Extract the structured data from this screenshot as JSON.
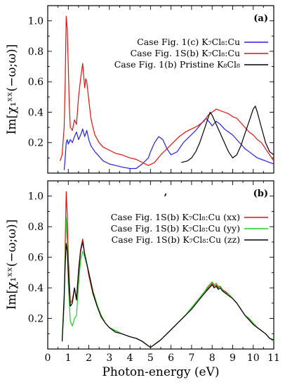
{
  "chart_data": [
    {
      "type": "line",
      "panel_label": "(a)",
      "ylabel": "Im[χ₁ˣˣ(−ω;ω)]",
      "xlim": [
        0,
        11
      ],
      "ylim": [
        0,
        1.1
      ],
      "yticks": [
        0.2,
        0.4,
        0.6,
        0.8,
        1.0
      ],
      "ytick_labels": [
        "0.2",
        "0.4",
        "0.6",
        "0.8",
        "1.0"
      ],
      "legend_position": "top-right",
      "series": [
        {
          "name": "Case Fig. 1(c) K₇Cl₈:Cu",
          "color": "#2222dd",
          "x": [
            0.8,
            0.85,
            0.9,
            0.95,
            1.0,
            1.1,
            1.2,
            1.3,
            1.4,
            1.5,
            1.6,
            1.7,
            1.8,
            1.9,
            2.0,
            2.1,
            2.2,
            2.3,
            2.5,
            2.7,
            3.0,
            3.3,
            3.6,
            4.0,
            4.3,
            4.6,
            4.9,
            5.0,
            5.2,
            5.4,
            5.6,
            5.8,
            6.0,
            6.3,
            6.6,
            6.9,
            7.2,
            7.5,
            7.7,
            7.9,
            8.0,
            8.2,
            8.4,
            8.6,
            8.8,
            9.0,
            9.2,
            9.4,
            9.6,
            9.8,
            10.0,
            10.2,
            10.4,
            10.6,
            10.8,
            11.0
          ],
          "y": [
            0.02,
            0.1,
            0.2,
            0.22,
            0.19,
            0.22,
            0.2,
            0.24,
            0.27,
            0.22,
            0.25,
            0.29,
            0.24,
            0.28,
            0.22,
            0.18,
            0.16,
            0.14,
            0.11,
            0.08,
            0.06,
            0.05,
            0.04,
            0.03,
            0.03,
            0.06,
            0.1,
            0.14,
            0.2,
            0.24,
            0.22,
            0.16,
            0.12,
            0.14,
            0.2,
            0.24,
            0.28,
            0.33,
            0.36,
            0.33,
            0.31,
            0.34,
            0.32,
            0.29,
            0.27,
            0.25,
            0.22,
            0.19,
            0.16,
            0.14,
            0.12,
            0.1,
            0.09,
            0.08,
            0.07,
            0.06
          ]
        },
        {
          "name": "Case Fig. 1S(b) K₇Cl₈:Cu",
          "color": "#dd1111",
          "x": [
            0.6,
            0.7,
            0.8,
            0.85,
            0.9,
            0.95,
            1.0,
            1.05,
            1.1,
            1.2,
            1.3,
            1.4,
            1.5,
            1.6,
            1.7,
            1.75,
            1.8,
            1.85,
            1.9,
            2.0,
            2.1,
            2.2,
            2.3,
            2.5,
            2.7,
            3.0,
            3.3,
            3.6,
            4.0,
            4.3,
            4.6,
            4.9,
            5.2,
            5.5,
            5.8,
            6.1,
            6.4,
            6.7,
            7.0,
            7.3,
            7.6,
            7.8,
            8.0,
            8.2,
            8.4,
            8.6,
            8.8,
            9.0,
            9.2,
            9.4,
            9.6,
            9.8,
            10.0,
            10.2,
            10.4,
            10.6,
            10.8,
            11.0
          ],
          "y": [
            0.08,
            0.12,
            0.3,
            0.6,
            1.03,
            0.95,
            0.7,
            0.45,
            0.3,
            0.28,
            0.35,
            0.32,
            0.5,
            0.62,
            0.72,
            0.64,
            0.56,
            0.62,
            0.6,
            0.48,
            0.36,
            0.3,
            0.25,
            0.2,
            0.17,
            0.15,
            0.13,
            0.12,
            0.1,
            0.09,
            0.07,
            0.05,
            0.07,
            0.12,
            0.16,
            0.2,
            0.24,
            0.27,
            0.29,
            0.31,
            0.34,
            0.38,
            0.4,
            0.42,
            0.41,
            0.4,
            0.39,
            0.37,
            0.36,
            0.33,
            0.3,
            0.27,
            0.25,
            0.22,
            0.2,
            0.16,
            0.12,
            0.08
          ]
        },
        {
          "name": "Case Fig. 1(b) Pristine K₈Cl₈",
          "color": "#000000",
          "x": [
            6.5,
            6.8,
            7.0,
            7.2,
            7.4,
            7.6,
            7.8,
            7.9,
            8.0,
            8.2,
            8.4,
            8.6,
            8.8,
            9.0,
            9.2,
            9.4,
            9.6,
            9.8,
            10.0,
            10.1,
            10.2,
            10.4,
            10.6,
            10.8,
            11.0
          ],
          "y": [
            0.07,
            0.08,
            0.1,
            0.14,
            0.2,
            0.28,
            0.36,
            0.4,
            0.38,
            0.32,
            0.26,
            0.2,
            0.14,
            0.1,
            0.12,
            0.18,
            0.26,
            0.34,
            0.42,
            0.44,
            0.4,
            0.3,
            0.2,
            0.14,
            0.12
          ]
        }
      ]
    },
    {
      "type": "line",
      "panel_label": "(b)",
      "top_mark": ",",
      "xlabel": "Photon-energy (eV)",
      "ylabel": "Im[χ₁ˣˣ(−ω;ω)]",
      "xlim": [
        0,
        11
      ],
      "ylim": [
        0,
        1.1
      ],
      "xticks": [
        0,
        1,
        2,
        3,
        4,
        5,
        6,
        7,
        8,
        9,
        10,
        11
      ],
      "xtick_labels": [
        "0",
        "1",
        "2",
        "3",
        "4",
        "5",
        "6",
        "7",
        "8",
        "9",
        "10",
        "11"
      ],
      "yticks": [
        0.2,
        0.4,
        0.6,
        0.8,
        1.0
      ],
      "ytick_labels": [
        "0.2",
        "0.4",
        "0.6",
        "0.8",
        "1.0"
      ],
      "legend_position": "top-right",
      "series": [
        {
          "name": "Case Fig. 1S(b) K₇Cl₈:Cu (xx)",
          "color": "#dd1111",
          "x": [
            0.7,
            0.8,
            0.85,
            0.9,
            0.95,
            1.0,
            1.1,
            1.2,
            1.3,
            1.4,
            1.5,
            1.6,
            1.7,
            1.8,
            1.9,
            2.0,
            2.2,
            2.4,
            2.6,
            2.8,
            3.0,
            3.3,
            3.6,
            4.0,
            4.3,
            4.6,
            4.8,
            5.0,
            5.2,
            5.5,
            5.8,
            6.1,
            6.4,
            6.7,
            7.0,
            7.3,
            7.6,
            7.8,
            8.0,
            8.1,
            8.2,
            8.3,
            8.4,
            8.5,
            8.6,
            8.8,
            9.0,
            9.2,
            9.4,
            9.6,
            9.8,
            10.0,
            10.2,
            10.4,
            10.6,
            10.8,
            11.0
          ],
          "y": [
            0.05,
            0.3,
            0.7,
            1.03,
            0.88,
            0.6,
            0.3,
            0.32,
            0.4,
            0.33,
            0.52,
            0.65,
            0.72,
            0.62,
            0.56,
            0.48,
            0.36,
            0.28,
            0.22,
            0.17,
            0.14,
            0.12,
            0.1,
            0.08,
            0.07,
            0.05,
            0.03,
            0.01,
            0.03,
            0.06,
            0.1,
            0.14,
            0.18,
            0.22,
            0.27,
            0.32,
            0.37,
            0.4,
            0.43,
            0.41,
            0.42,
            0.4,
            0.41,
            0.39,
            0.38,
            0.36,
            0.33,
            0.3,
            0.26,
            0.22,
            0.2,
            0.17,
            0.14,
            0.12,
            0.1,
            0.07,
            0.05
          ]
        },
        {
          "name": "Case Fig. 1S(b) K₇Cl₈:Cu (yy)",
          "color": "#22cc22",
          "x": [
            0.7,
            0.8,
            0.85,
            0.9,
            0.95,
            1.0,
            1.1,
            1.2,
            1.3,
            1.4,
            1.5,
            1.6,
            1.7,
            1.8,
            1.9,
            2.0,
            2.2,
            2.4,
            2.6,
            2.8,
            3.0,
            3.3,
            3.6,
            4.0,
            4.3,
            4.6,
            4.8,
            5.0,
            5.2,
            5.5,
            5.8,
            6.1,
            6.4,
            6.7,
            7.0,
            7.3,
            7.6,
            7.8,
            8.0,
            8.1,
            8.2,
            8.3,
            8.4,
            8.5,
            8.6,
            8.8,
            9.0,
            9.2,
            9.4,
            9.6,
            9.8,
            10.0,
            10.2,
            10.4,
            10.6,
            10.8,
            11.0
          ],
          "y": [
            0.05,
            0.28,
            0.6,
            0.86,
            0.7,
            0.42,
            0.18,
            0.15,
            0.2,
            0.22,
            0.42,
            0.58,
            0.64,
            0.6,
            0.55,
            0.5,
            0.38,
            0.29,
            0.22,
            0.17,
            0.14,
            0.12,
            0.1,
            0.08,
            0.07,
            0.05,
            0.03,
            0.01,
            0.03,
            0.06,
            0.1,
            0.14,
            0.18,
            0.22,
            0.27,
            0.32,
            0.37,
            0.41,
            0.44,
            0.42,
            0.43,
            0.41,
            0.41,
            0.39,
            0.37,
            0.36,
            0.33,
            0.3,
            0.26,
            0.22,
            0.2,
            0.17,
            0.14,
            0.12,
            0.1,
            0.07,
            0.05
          ]
        },
        {
          "name": "Case Fig. 1S(b) K₇Cl₈:Cu (zz)",
          "color": "#000000",
          "x": [
            0.7,
            0.8,
            0.85,
            0.9,
            0.95,
            1.0,
            1.1,
            1.2,
            1.3,
            1.4,
            1.5,
            1.6,
            1.7,
            1.8,
            1.9,
            2.0,
            2.2,
            2.4,
            2.6,
            2.8,
            3.0,
            3.3,
            3.6,
            4.0,
            4.3,
            4.6,
            4.8,
            5.0,
            5.2,
            5.5,
            5.8,
            6.1,
            6.4,
            6.7,
            7.0,
            7.3,
            7.6,
            7.8,
            8.0,
            8.1,
            8.2,
            8.3,
            8.4,
            8.5,
            8.6,
            8.8,
            9.0,
            9.2,
            9.4,
            9.6,
            9.8,
            10.0,
            10.2,
            10.4,
            10.6,
            10.8,
            11.0
          ],
          "y": [
            0.05,
            0.35,
            0.55,
            0.69,
            0.64,
            0.5,
            0.28,
            0.3,
            0.4,
            0.32,
            0.5,
            0.64,
            0.7,
            0.62,
            0.56,
            0.5,
            0.37,
            0.28,
            0.21,
            0.17,
            0.14,
            0.11,
            0.1,
            0.08,
            0.07,
            0.05,
            0.03,
            0.01,
            0.03,
            0.06,
            0.1,
            0.14,
            0.18,
            0.22,
            0.26,
            0.31,
            0.36,
            0.39,
            0.42,
            0.4,
            0.41,
            0.39,
            0.4,
            0.38,
            0.37,
            0.35,
            0.33,
            0.3,
            0.26,
            0.22,
            0.19,
            0.16,
            0.14,
            0.12,
            0.1,
            0.07,
            0.06
          ]
        }
      ]
    }
  ]
}
